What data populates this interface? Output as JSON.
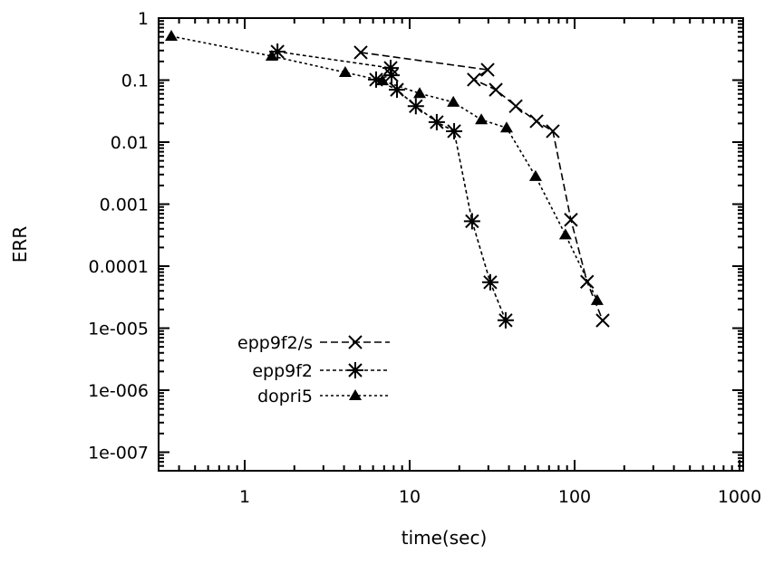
{
  "chart_data": {
    "type": "line",
    "title": "",
    "xlabel": "time(sec)",
    "ylabel": "ERR",
    "xscale": "log",
    "yscale": "log",
    "xlim": [
      0.3,
      1000
    ],
    "ylim": [
      5e-08,
      1
    ],
    "grid": false,
    "legend_position": "bottom-left",
    "x_ticks": [
      {
        "v": 1,
        "label": "1"
      },
      {
        "v": 10,
        "label": "10"
      },
      {
        "v": 100,
        "label": "100"
      },
      {
        "v": 1000,
        "label": "1000"
      }
    ],
    "y_ticks": [
      {
        "v": 1,
        "label": "1"
      },
      {
        "v": 0.1,
        "label": "0.1"
      },
      {
        "v": 0.01,
        "label": "0.01"
      },
      {
        "v": 0.001,
        "label": "0.001"
      },
      {
        "v": 0.0001,
        "label": "0.0001"
      },
      {
        "v": 1e-05,
        "label": "1e-005"
      },
      {
        "v": 1e-06,
        "label": "1e-006"
      },
      {
        "v": 1e-07,
        "label": "1e-007"
      }
    ],
    "series": [
      {
        "name": "epp9f2/s",
        "marker": "x",
        "dash": "8,4",
        "x": [
          5.05,
          29.7,
          24.5,
          33.3,
          44,
          58.8,
          73.8,
          95,
          119,
          148
        ],
        "y": [
          0.279,
          0.147,
          0.102,
          0.07,
          0.038,
          0.0217,
          0.015,
          0.00056,
          5.6e-05,
          1.33e-05
        ]
      },
      {
        "name": "epp9f2",
        "marker": "asterisk",
        "dash": "4,3",
        "x": [
          1.58,
          7.67,
          7.77,
          6.26,
          8.38,
          10.9,
          14.6,
          18.6,
          23.9,
          30.8,
          38.2
        ],
        "y": [
          0.288,
          0.157,
          0.12,
          0.102,
          0.07,
          0.038,
          0.021,
          0.015,
          0.00053,
          5.5e-05,
          1.34e-05
        ]
      },
      {
        "name": "dopri5",
        "marker": "triangle",
        "dash": "3,3",
        "x": [
          0.359,
          1.46,
          4.07,
          6.84,
          11.5,
          18.4,
          27.2,
          38.7,
          58,
          88,
          137
        ],
        "y": [
          0.51,
          0.244,
          0.133,
          0.098,
          0.061,
          0.044,
          0.023,
          0.017,
          0.0028,
          0.00032,
          2.8e-05
        ]
      }
    ]
  }
}
